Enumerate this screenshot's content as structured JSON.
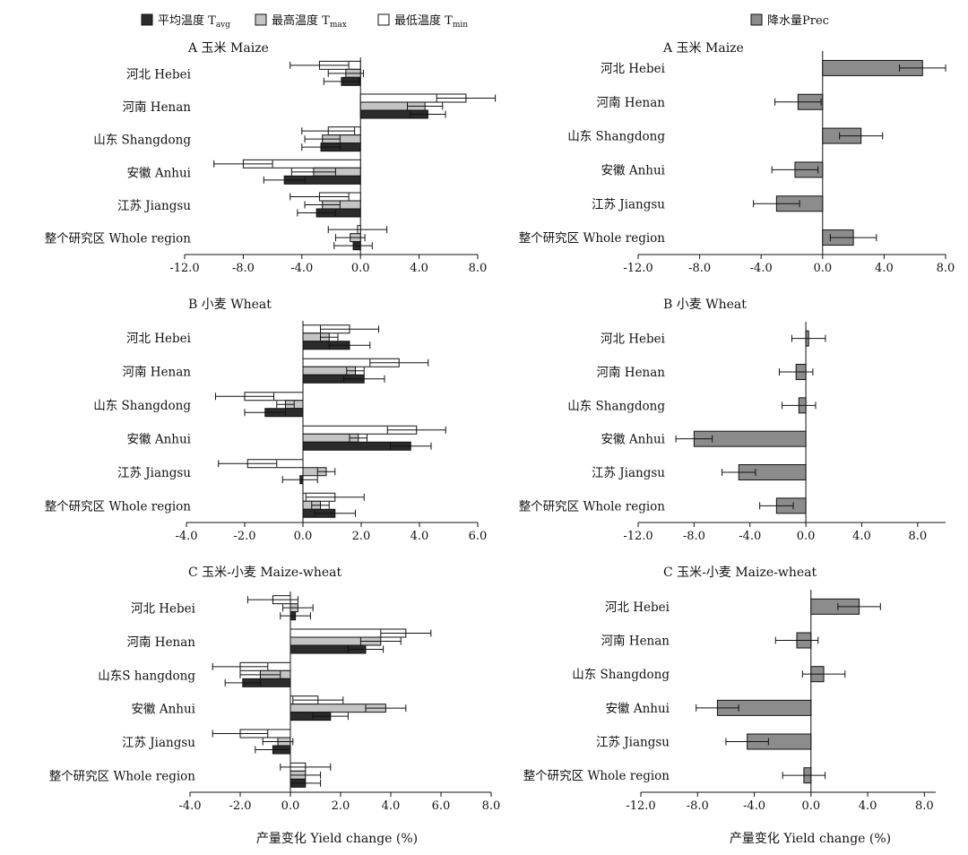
{
  "legend": {
    "temp_avg": {
      "label": "平均温度 T",
      "sub": "avg",
      "color": "#2b2b2b"
    },
    "temp_max": {
      "label": "最高温度 T",
      "sub": "max",
      "color": "#c4c4c4"
    },
    "temp_min": {
      "label": "最低温度 T",
      "sub": "min",
      "color": "#ffffff"
    },
    "prec": {
      "label": "降水量Prec",
      "color": "#8c8c8c"
    }
  },
  "xlabel": "产量变化 Yield change (%)",
  "chart_data": [
    {
      "type": "bar",
      "orientation": "horizontal",
      "title": "A  玉米 Maize",
      "categories": [
        "河北 Hebei",
        "河南 Henan",
        "山东 Shangdong",
        "安徽 Anhui",
        "江苏 Jiangsu",
        "整个研究区 Whole region"
      ],
      "xlim": [
        -12,
        8
      ],
      "xticks": [
        "-12.0",
        "-8.0",
        "-4.0",
        "0.0",
        "4.0",
        "8.0"
      ],
      "series": [
        {
          "name": "最低温度 Tmin",
          "values": [
            -2.8,
            7.2,
            -2.2,
            -8.0,
            -2.8,
            -0.2
          ],
          "errors": [
            2.0,
            2.0,
            1.8,
            2.0,
            2.0,
            2.0
          ]
        },
        {
          "name": "最高温度 Tmax",
          "values": [
            -1.0,
            4.4,
            -2.6,
            -3.2,
            -2.6,
            -0.7
          ],
          "errors": [
            1.2,
            1.2,
            1.2,
            1.5,
            1.2,
            1.0
          ]
        },
        {
          "name": "平均温度 Tavg",
          "values": [
            -1.3,
            4.6,
            -2.7,
            -5.2,
            -3.0,
            -0.5
          ],
          "errors": [
            1.2,
            1.2,
            1.3,
            1.4,
            1.3,
            1.3
          ]
        }
      ]
    },
    {
      "type": "bar",
      "orientation": "horizontal",
      "title": "A  玉米 Maize",
      "categories": [
        "河北 Hebei",
        "河南 Henan",
        "山东 Shangdong",
        "安徽 Anhui",
        "江苏 Jiangsu",
        "整个研究区 Whole region"
      ],
      "xlim": [
        -12,
        8
      ],
      "xticks": [
        "-12.0",
        "-8.0",
        "-4.0",
        "0.0",
        "4.0",
        "8.0"
      ],
      "series": [
        {
          "name": "降水量Prec",
          "values": [
            6.5,
            -1.6,
            2.5,
            -1.8,
            -3.0,
            2.0
          ],
          "errors": [
            1.5,
            1.5,
            1.4,
            1.5,
            1.5,
            1.5
          ]
        }
      ]
    },
    {
      "type": "bar",
      "orientation": "horizontal",
      "title": "B  小麦 Wheat",
      "categories": [
        "河北 Hebei",
        "河南 Henan",
        "山东 Shangdong",
        "安徽 Anhui",
        "江苏 Jiangsu",
        "整个研究区 Whole region"
      ],
      "xlim": [
        -4,
        6
      ],
      "xticks": [
        "-4.0",
        "-2.0",
        "0.0",
        "2.0",
        "4.0",
        "6.0"
      ],
      "series": [
        {
          "name": "最低温度 Tmin",
          "values": [
            1.6,
            3.3,
            -2.0,
            3.9,
            -1.9,
            1.1
          ],
          "errors": [
            1.0,
            1.0,
            1.0,
            1.0,
            1.0,
            1.0
          ]
        },
        {
          "name": "最高温度 Tmax",
          "values": [
            0.9,
            1.8,
            -0.6,
            1.9,
            0.8,
            0.6
          ],
          "errors": [
            0.3,
            0.3,
            0.3,
            0.3,
            0.3,
            0.3
          ]
        },
        {
          "name": "平均温度 Tavg",
          "values": [
            1.6,
            2.1,
            -1.3,
            3.7,
            -0.1,
            1.1
          ],
          "errors": [
            0.7,
            0.7,
            0.7,
            0.7,
            0.6,
            0.7
          ]
        }
      ]
    },
    {
      "type": "bar",
      "orientation": "horizontal",
      "title": "B  小麦 Wheat",
      "categories": [
        "河北 Hebei",
        "河南 Henan",
        "山东 Shangdong",
        "安徽 Anhui",
        "江苏 Jiangsu",
        "整个研究区 Whole region"
      ],
      "xlim": [
        -12,
        10
      ],
      "xticks": [
        "-12.0",
        "-8.0",
        "-4.0",
        "0.0",
        "4.0",
        "8.0"
      ],
      "series": [
        {
          "name": "降水量Prec",
          "values": [
            0.2,
            -0.7,
            -0.5,
            -8.0,
            -4.8,
            -2.1
          ],
          "errors": [
            1.2,
            1.2,
            1.2,
            1.3,
            1.2,
            1.2
          ]
        }
      ]
    },
    {
      "type": "bar",
      "orientation": "horizontal",
      "title": "C  玉米-小麦 Maize-wheat",
      "categories": [
        "河北 Hebei",
        "河南 Henan",
        "山东S hangdong",
        "安徽 Anhui",
        "江苏 Jiangsu",
        "整个研究区 Whole region"
      ],
      "xlim": [
        -4,
        8
      ],
      "xticks": [
        "-4.0",
        "-2.0",
        "0.0",
        "2.0",
        "4.0",
        "6.0",
        "8.0"
      ],
      "series": [
        {
          "name": "最低温度 Tmin",
          "values": [
            -0.7,
            4.6,
            -2.0,
            1.1,
            -2.0,
            0.6
          ],
          "errors": [
            1.0,
            1.0,
            1.1,
            1.0,
            1.1,
            1.0
          ]
        },
        {
          "name": "最高温度 Tmax",
          "values": [
            0.3,
            3.6,
            -1.2,
            3.8,
            -0.5,
            0.6
          ],
          "errors": [
            0.6,
            0.8,
            0.8,
            0.8,
            0.6,
            0.6
          ]
        },
        {
          "name": "平均温度 Tavg",
          "values": [
            0.2,
            3.0,
            -1.9,
            1.6,
            -0.7,
            0.6
          ],
          "errors": [
            0.6,
            0.7,
            0.7,
            0.7,
            0.7,
            0.6
          ]
        }
      ]
    },
    {
      "type": "bar",
      "orientation": "horizontal",
      "title": "C  玉米-小麦 Maize-wheat",
      "categories": [
        "河北 Hebei",
        "河南 Henan",
        "山东 Shangdong",
        "安徽 Anhui",
        "江苏 Jiangsu",
        "整个研究区 Whole region"
      ],
      "xlim": [
        -12,
        8.8
      ],
      "xticks": [
        "-12.0",
        "-8.0",
        "-4.0",
        "0.0",
        "4.0",
        "8.0"
      ],
      "series": [
        {
          "name": "降水量Prec",
          "values": [
            3.4,
            -1.0,
            0.9,
            -6.6,
            -4.5,
            -0.5
          ],
          "errors": [
            1.5,
            1.5,
            1.5,
            1.5,
            1.5,
            1.5
          ]
        }
      ]
    }
  ]
}
